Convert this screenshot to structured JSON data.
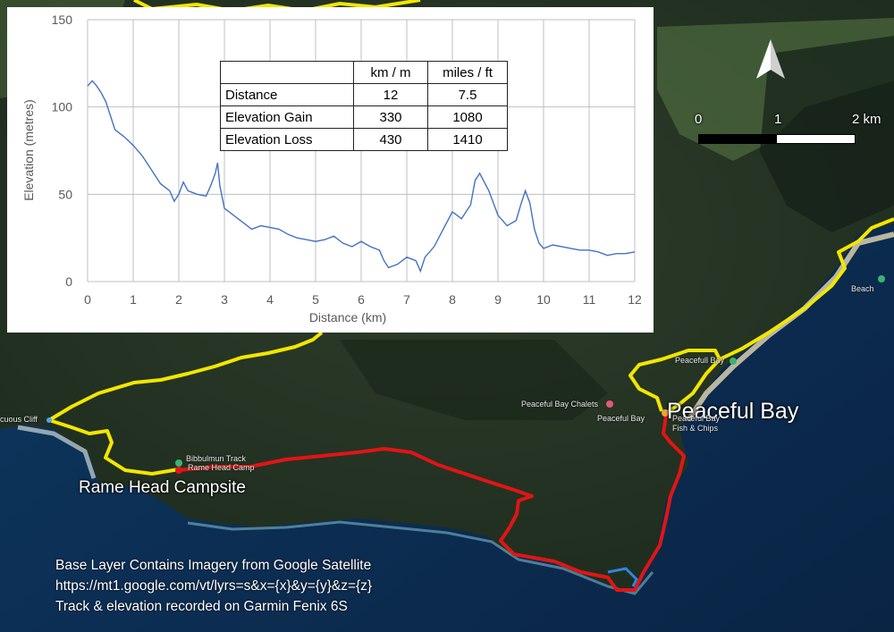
{
  "map": {
    "north_arrow_icon": "north-arrow-icon",
    "scale_bar": {
      "labels": [
        "0",
        "1",
        "2 km"
      ]
    },
    "places": {
      "peaceful_bay": "Peaceful Bay",
      "rame_head_campsite": "Rame Head Campsite"
    },
    "poi_labels": {
      "peaceful_bay_chalets": "Peaceful Bay Chalets",
      "peaceful_bay_town": "Peaceful Bay",
      "fish_and_chips_1": "Peaceful Bay",
      "fish_and_chips_2": "Fish & Chips",
      "peacefull_bay": "Peacefull Bay",
      "conspicuous_cliff": "cuous Cliff",
      "bibbulmun_1": "Bibbulmun Track",
      "bibbulmun_2": "Rame Head Camp",
      "beach_1": "Beach"
    },
    "track_colors": {
      "trail": "#f2e600",
      "route": "#e01515",
      "side_trip": "#2e86de"
    },
    "credits": [
      "Base Layer Contains Imagery from Google Satellite",
      "https://mt1.google.com/vt/lyrs=s&x={x}&y={y}&z={z}",
      "Track & elevation recorded on Garmin Fenix 6S"
    ]
  },
  "stats_table": {
    "headers": [
      "",
      "km / m",
      "miles / ft"
    ],
    "rows": [
      {
        "label": "Distance",
        "metric": "12",
        "imperial": "7.5"
      },
      {
        "label": "Elevation Gain",
        "metric": "330",
        "imperial": "1080"
      },
      {
        "label": "Elevation Loss",
        "metric": "430",
        "imperial": "1410"
      }
    ]
  },
  "chart_data": {
    "type": "line",
    "xlabel": "Distance (km)",
    "ylabel": "Elevation (metres)",
    "xlim": [
      0,
      12
    ],
    "ylim": [
      0,
      150
    ],
    "xticks": [
      "0",
      "1",
      "2",
      "3",
      "4",
      "5",
      "6",
      "7",
      "8",
      "9",
      "10",
      "11",
      "12"
    ],
    "yticks": [
      "0",
      "50",
      "100",
      "150"
    ],
    "grid": true,
    "line_color": "#4472c4",
    "series": [
      {
        "x": [
          0,
          0.1,
          0.2,
          0.3,
          0.4,
          0.5,
          0.6,
          0.8,
          1.0,
          1.2,
          1.4,
          1.6,
          1.8,
          1.9,
          2.0,
          2.1,
          2.2,
          2.4,
          2.6,
          2.7,
          2.8,
          2.85,
          2.9,
          3.0,
          3.2,
          3.4,
          3.6,
          3.8,
          4.0,
          4.2,
          4.4,
          4.6,
          4.8,
          5.0,
          5.2,
          5.4,
          5.6,
          5.8,
          6.0,
          6.2,
          6.4,
          6.5,
          6.6,
          6.8,
          7.0,
          7.2,
          7.3,
          7.4,
          7.6,
          7.8,
          8.0,
          8.2,
          8.4,
          8.5,
          8.6,
          8.8,
          9.0,
          9.2,
          9.4,
          9.5,
          9.6,
          9.7,
          9.8,
          9.9,
          10.0,
          10.2,
          10.4,
          10.6,
          10.8,
          11.0,
          11.2,
          11.4,
          11.6,
          11.8,
          12.0
        ],
        "y": [
          112,
          115,
          112,
          108,
          103,
          95,
          87,
          83,
          78,
          72,
          64,
          56,
          52,
          46,
          50,
          57,
          52,
          50,
          49,
          55,
          62,
          68,
          55,
          42,
          38,
          34,
          30,
          32,
          31,
          30,
          27,
          25,
          24,
          23,
          24,
          26,
          22,
          20,
          23,
          20,
          18,
          12,
          8,
          10,
          14,
          12,
          6,
          14,
          20,
          30,
          40,
          36,
          44,
          58,
          62,
          52,
          38,
          32,
          35,
          44,
          52,
          45,
          30,
          22,
          19,
          21,
          20,
          19,
          18,
          18,
          17,
          15,
          16,
          16,
          17
        ]
      }
    ]
  }
}
